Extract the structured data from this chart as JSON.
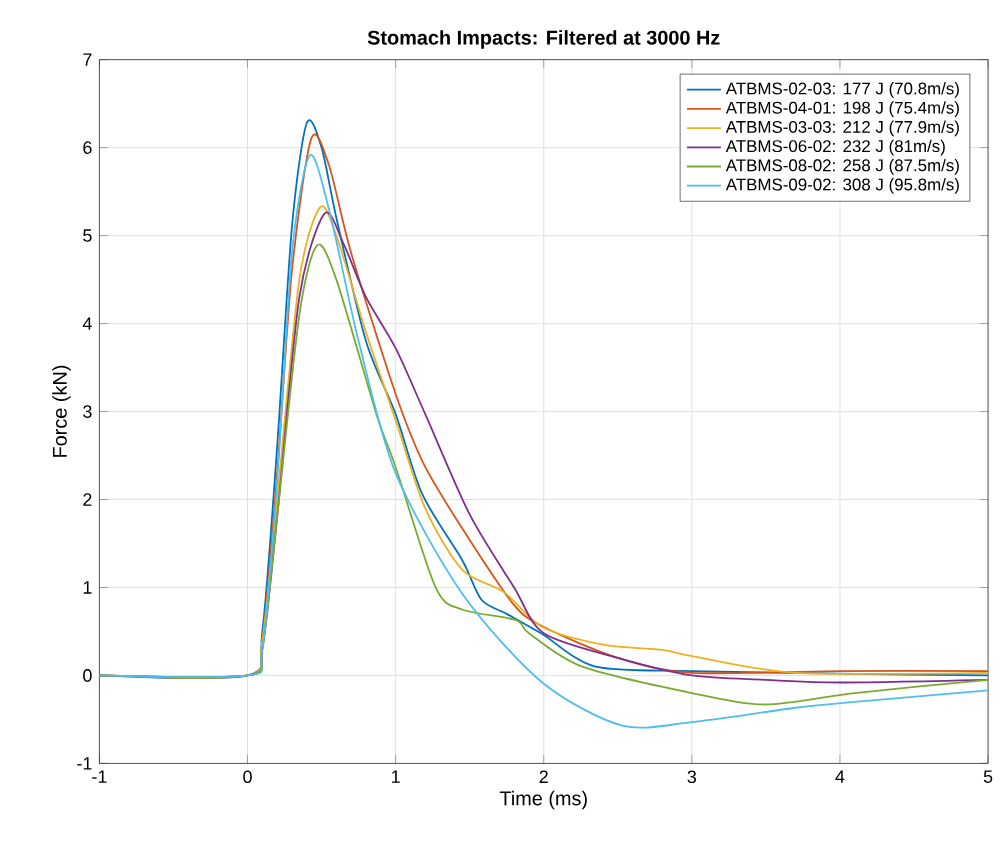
{
  "chart_data": {
    "type": "line",
    "title": "Stomach Impacts: Filtered at 3000 Hz",
    "xlabel": "Time (ms)",
    "ylabel": "Force (kN)",
    "xlim": [
      -1,
      5
    ],
    "ylim": [
      -1,
      7
    ],
    "xticks": [
      -1,
      0,
      1,
      2,
      3,
      4,
      5
    ],
    "yticks": [
      -1,
      0,
      1,
      2,
      3,
      4,
      5,
      6,
      7
    ],
    "grid": true,
    "legend": "top right",
    "series": [
      {
        "name": "ATBMS-02-03: 177 J (70.8m/s)",
        "color": "#0072bd",
        "x": [
          -1,
          0,
          0.1,
          0.2,
          0.3,
          0.4,
          0.5,
          0.6,
          0.8,
          1.0,
          1.18,
          1.45,
          1.58,
          1.75,
          1.99,
          2.35,
          3,
          4,
          5
        ],
        "values": [
          0,
          0,
          0.5,
          2.6,
          5.1,
          6.28,
          6.0,
          5.2,
          3.8,
          2.97,
          2.06,
          1.31,
          0.86,
          0.7,
          0.47,
          0.1,
          0.05,
          0.02,
          0.0
        ]
      },
      {
        "name": "ATBMS-04-01: 198 J (75.4m/s)",
        "color": "#d95319",
        "x": [
          -1,
          0,
          0.1,
          0.2,
          0.3,
          0.43,
          0.55,
          0.7,
          1.0,
          1.2,
          1.5,
          1.8,
          2.0,
          2.5,
          3,
          4,
          5
        ],
        "values": [
          0,
          0,
          0.4,
          2.3,
          4.6,
          6.1,
          5.8,
          4.8,
          3.2,
          2.37,
          1.54,
          0.8,
          0.55,
          0.2,
          0.03,
          0.05,
          0.05
        ]
      },
      {
        "name": "ATBMS-03-03: 212 J (77.9m/s)",
        "color": "#edb120",
        "x": [
          -1,
          0,
          0.1,
          0.2,
          0.35,
          0.49,
          0.6,
          0.8,
          1.0,
          1.2,
          1.45,
          1.73,
          1.99,
          2.4,
          2.8,
          3.0,
          3.7,
          5
        ],
        "values": [
          0,
          0,
          0.4,
          2.0,
          4.5,
          5.32,
          5.0,
          3.9,
          2.9,
          1.9,
          1.2,
          0.95,
          0.55,
          0.35,
          0.29,
          0.22,
          0.03,
          0.03
        ]
      },
      {
        "name": "ATBMS-06-02: 232 J (81m/s)",
        "color": "#7e2f8e",
        "x": [
          -1,
          0,
          0.1,
          0.2,
          0.35,
          0.52,
          0.65,
          0.8,
          1.0,
          1.2,
          1.5,
          1.8,
          2.0,
          2.5,
          3,
          3.5,
          4,
          5
        ],
        "values": [
          0,
          0,
          0.3,
          1.8,
          4.3,
          5.25,
          4.9,
          4.3,
          3.72,
          2.97,
          1.83,
          1.0,
          0.48,
          0.2,
          0.0,
          -0.05,
          -0.08,
          -0.05
        ]
      },
      {
        "name": "ATBMS-08-02: 258 J (87.5m/s)",
        "color": "#77ac30",
        "x": [
          -1,
          0,
          0.1,
          0.2,
          0.35,
          0.47,
          0.6,
          0.87,
          1.0,
          1.27,
          1.45,
          1.81,
          1.9,
          2.26,
          3.0,
          3.5,
          4.1,
          5
        ],
        "values": [
          0,
          0,
          0.3,
          1.8,
          4.1,
          4.89,
          4.5,
          2.97,
          2.37,
          1.0,
          0.75,
          0.63,
          0.48,
          0.1,
          -0.2,
          -0.33,
          -0.2,
          -0.05
        ]
      },
      {
        "name": "ATBMS-09-02: 308 J (95.8m/s)",
        "color": "#4dbeee",
        "x": [
          -1,
          0,
          0.1,
          0.2,
          0.3,
          0.42,
          0.55,
          0.75,
          1.0,
          1.45,
          1.99,
          2.53,
          3.0,
          3.69,
          4.1,
          5
        ],
        "values": [
          0,
          0,
          0.3,
          2.2,
          4.8,
          5.91,
          5.3,
          3.8,
          2.3,
          0.93,
          -0.08,
          -0.57,
          -0.53,
          -0.37,
          -0.3,
          -0.17
        ]
      }
    ]
  }
}
